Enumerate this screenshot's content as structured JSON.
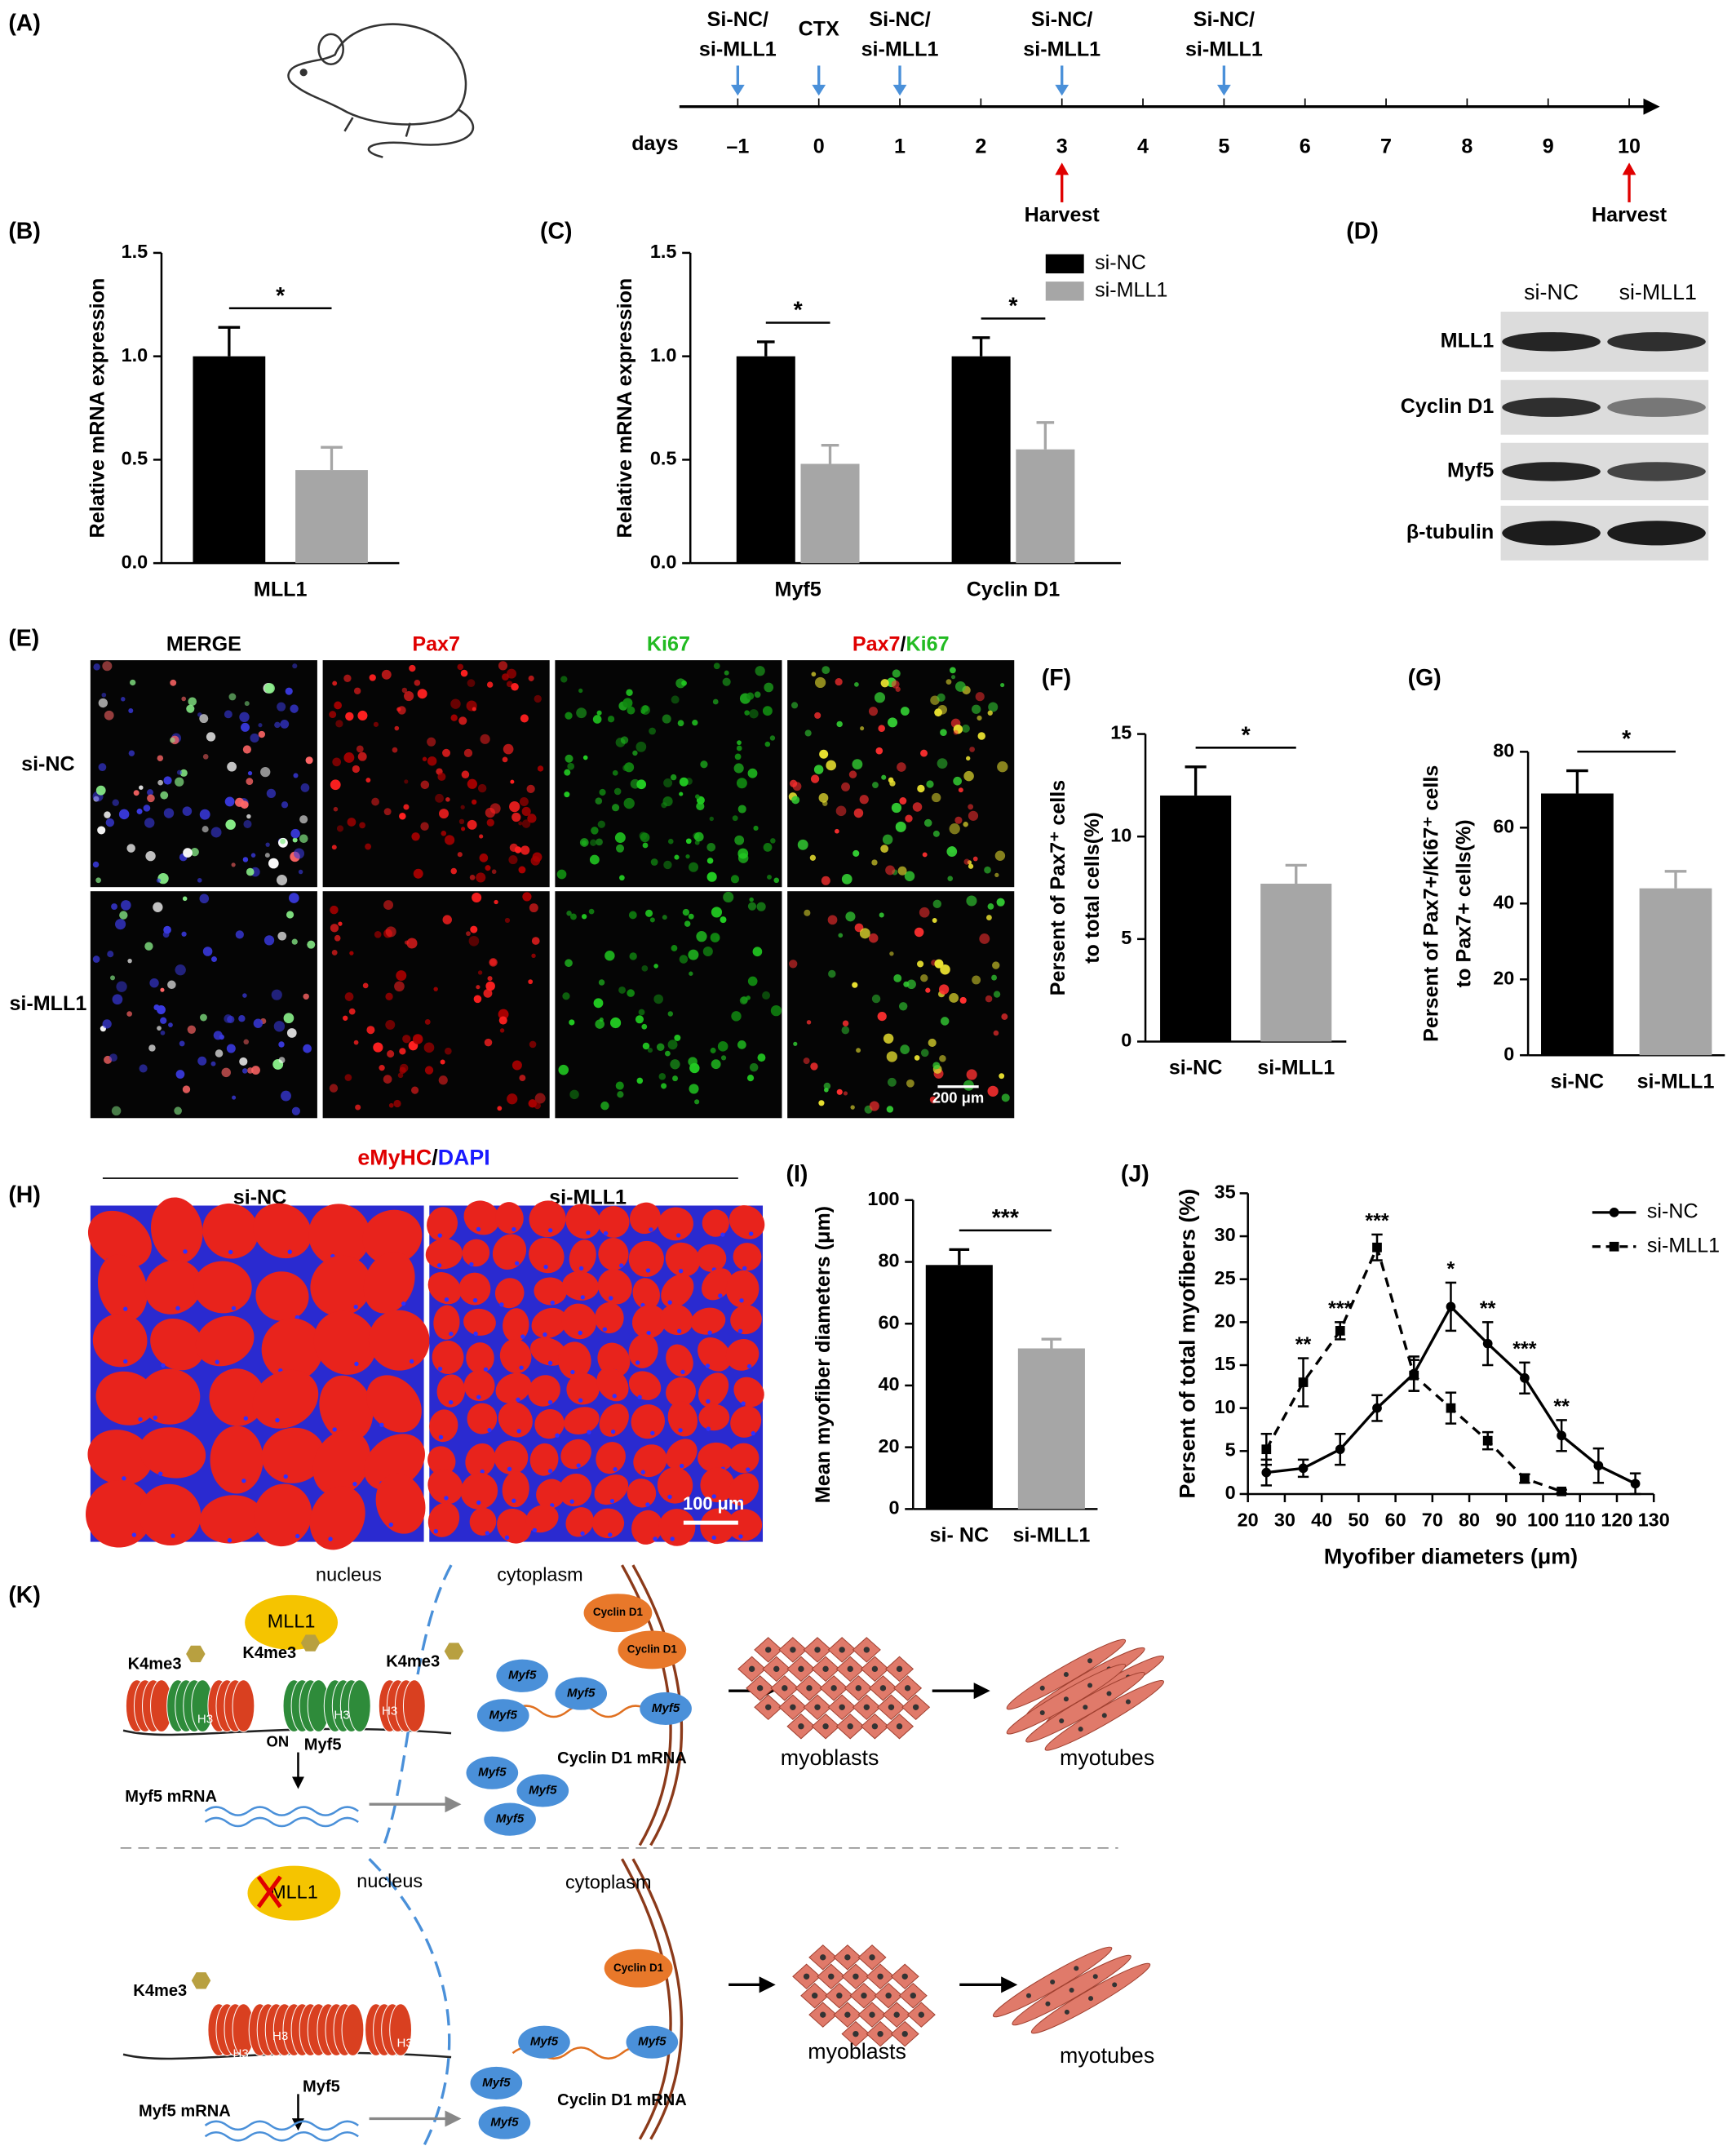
{
  "panel_labels": [
    "(A)",
    "(B)",
    "(C)",
    "(D)",
    "(E)",
    "(F)",
    "(G)",
    "(H)",
    "(I)",
    "(J)",
    "(K)"
  ],
  "timeline": {
    "axis_label": "days",
    "ticks": [
      {
        "value": -1,
        "label": "–1"
      },
      0,
      1,
      2,
      3,
      4,
      5,
      6,
      7,
      8,
      9,
      10
    ],
    "injections": [
      {
        "day": -1,
        "label": [
          "Si-NC/",
          "si-MLL1"
        ]
      },
      {
        "day": 0,
        "label": [
          "CTX"
        ]
      },
      {
        "day": 1,
        "label": [
          "Si-NC/",
          "si-MLL1"
        ]
      },
      {
        "day": 3,
        "label": [
          "Si-NC/",
          "si-MLL1"
        ]
      },
      {
        "day": 5,
        "label": [
          "Si-NC/",
          "si-MLL1"
        ]
      }
    ],
    "harvests": [
      {
        "day": 3,
        "label": "Harvest"
      },
      {
        "day": 10,
        "label": "Harvest"
      }
    ]
  },
  "chart_data": [
    {
      "type": "bar",
      "ylabel": [
        "Relative mRNA expression"
      ],
      "categories": [
        "MLL1"
      ],
      "series": [
        {
          "color": "#000000",
          "values": [
            1.0
          ],
          "errors": [
            0.14
          ]
        },
        {
          "color": "#a6a6a6",
          "values": [
            0.45
          ],
          "errors": [
            0.11
          ]
        }
      ],
      "ylim": [
        0,
        1.5
      ],
      "yticks": [
        {
          "value": 0,
          "label": "0.0"
        },
        {
          "value": 0.5,
          "label": "0.5"
        },
        {
          "value": 1,
          "label": "1.0"
        },
        {
          "value": 1.5,
          "label": "1.5"
        }
      ],
      "significance": [
        "*"
      ]
    },
    {
      "type": "bar",
      "ylabel": [
        "Relative mRNA expression"
      ],
      "categories": [
        "Myf5",
        "Cyclin D1"
      ],
      "series": [
        {
          "name": "si-NC",
          "color": "#000000",
          "values": [
            1.0,
            1.0
          ],
          "errors": [
            0.07,
            0.09
          ]
        },
        {
          "name": "si-MLL1",
          "color": "#a6a6a6",
          "values": [
            0.48,
            0.55
          ],
          "errors": [
            0.09,
            0.13
          ]
        }
      ],
      "ylim": [
        0,
        1.5
      ],
      "yticks": [
        {
          "value": 0,
          "label": "0.0"
        },
        {
          "value": 0.5,
          "label": "0.5"
        },
        {
          "value": 1,
          "label": "1.0"
        },
        {
          "value": 1.5,
          "label": "1.5"
        }
      ],
      "significance": [
        "*",
        "*"
      ],
      "legend": "upper right"
    },
    {
      "type": "bar",
      "ylabel": [
        "Persent of Pax7⁺ cells",
        "to total cells(%)"
      ],
      "categories": [
        "si-NC",
        "si-MLL1"
      ],
      "values": [
        12,
        7.7
      ],
      "errors": [
        1.4,
        0.9
      ],
      "colors": [
        "#000000",
        "#a6a6a6"
      ],
      "ylim": [
        0,
        15
      ],
      "yticks": [
        0,
        5,
        10,
        15
      ],
      "significance": [
        "*"
      ]
    },
    {
      "type": "bar",
      "ylabel": [
        "Persent of Pax7+/Ki67⁺ cells",
        "to Pax7+ cells(%)"
      ],
      "categories": [
        "si-NC",
        "si-MLL1"
      ],
      "values": [
        69,
        44
      ],
      "errors": [
        6,
        4.5
      ],
      "colors": [
        "#000000",
        "#a6a6a6"
      ],
      "ylim": [
        0,
        80
      ],
      "yticks": [
        0,
        20,
        40,
        60,
        80
      ],
      "significance": [
        "*"
      ]
    },
    {
      "type": "bar",
      "ylabel": [
        "Mean myofiber diameters (μm)"
      ],
      "categories": [
        "si- NC",
        "si-MLL1"
      ],
      "values": [
        79,
        52
      ],
      "errors": [
        5,
        3
      ],
      "colors": [
        "#000000",
        "#a6a6a6"
      ],
      "ylim": [
        0,
        100
      ],
      "yticks": [
        0,
        20,
        40,
        60,
        80,
        100
      ],
      "significance": [
        "***"
      ]
    },
    {
      "type": "line",
      "xlabel": "Myofiber diameters (μm)",
      "ylabel": "Persent of total myofibers (%)",
      "x": [
        25,
        35,
        45,
        55,
        65,
        75,
        85,
        95,
        105,
        115,
        125
      ],
      "series": [
        {
          "name": "si-NC",
          "color": "#000000",
          "dashed": false,
          "marker": "circle",
          "values": [
            2.5,
            3,
            5.2,
            10,
            14,
            21.8,
            17.5,
            13.5,
            6.8,
            3.3,
            1.2
          ],
          "errors": [
            1.5,
            1,
            1.8,
            1.5,
            2,
            2.8,
            2.5,
            1.8,
            1.8,
            2,
            1.2
          ]
        },
        {
          "name": "si-MLL1",
          "color": "#000000",
          "dashed": true,
          "marker": "square",
          "values": [
            5.2,
            13,
            19,
            28.7,
            13.8,
            10,
            6.2,
            1.8,
            0.3,
            null,
            null
          ],
          "errors": [
            1.8,
            2.8,
            1,
            1.5,
            1.8,
            1.8,
            1,
            0.5,
            0.2,
            null,
            null
          ]
        }
      ],
      "xlim": [
        20,
        130
      ],
      "xticks": [
        20,
        30,
        40,
        50,
        60,
        70,
        80,
        90,
        100,
        110,
        120,
        130
      ],
      "ylim": [
        0,
        35
      ],
      "yticks": [
        0,
        5,
        10,
        15,
        20,
        25,
        30,
        35
      ],
      "annotations": [
        {
          "index": 1,
          "text": "**"
        },
        {
          "index": 2,
          "text": "***"
        },
        {
          "index": 3,
          "text": "***"
        },
        {
          "index": 5,
          "text": "*"
        },
        {
          "index": 6,
          "text": "**"
        },
        {
          "index": 7,
          "text": "***"
        },
        {
          "index": 8,
          "text": "**"
        }
      ],
      "legend": "upper right"
    }
  ],
  "western_blot": {
    "columns": [
      "si-NC",
      "si-MLL1"
    ],
    "rows": [
      "MLL1",
      "Cyclin D1",
      "Myf5",
      "β-tubulin"
    ]
  },
  "immunofluorescence": {
    "columns": [
      [
        {
          "text": "MERGE",
          "color": "#000000"
        }
      ],
      [
        {
          "text": "Pax7",
          "color": "#e00000"
        }
      ],
      [
        {
          "text": "Ki67",
          "color": "#22bb22"
        }
      ],
      [
        {
          "text": "Pax7",
          "color": "#e00000"
        },
        {
          "text": "/",
          "color": "#000000"
        },
        {
          "text": "Ki67",
          "color": "#22bb22"
        }
      ]
    ],
    "rows": [
      "si-NC",
      "si-MLL1"
    ],
    "scale_bar": "200 μm"
  },
  "histology": {
    "title": [
      {
        "text": "eMyHC",
        "color": "#e00000"
      },
      {
        "text": "/",
        "color": "#000000"
      },
      {
        "text": "DAPI",
        "color": "#1a1aff"
      }
    ],
    "columns": [
      "si-NC",
      "si-MLL1"
    ],
    "scale_bar": "100 μm"
  },
  "pathway_diagram": {
    "active": {
      "nucleus": "nucleus",
      "mll1": "MLL1",
      "k4me3": [
        "K4me3",
        "K4me3",
        "K4me3"
      ],
      "h3": [
        "H3",
        "H3",
        "H3"
      ],
      "on": "ON",
      "gene": "Myf5",
      "mrna": "Myf5 mRNA",
      "cytoplasm": "cytoplasm",
      "cyclin": [
        "Cyclin D1",
        "Cyclin D1"
      ],
      "myf5_proteins": [
        "Myf5",
        "Myf5",
        "Myf5",
        "Myf5",
        "Myf5",
        "Myf5",
        "Myf5"
      ],
      "cyclin_mrna": "Cyclin D1 mRNA",
      "myoblasts": "myoblasts",
      "myotubes": "myotubes"
    },
    "knockdown": {
      "nucleus": "nucleus",
      "mll1": "MLL1",
      "k4me3": [
        "K4me3"
      ],
      "h3": [
        "H3",
        "H3",
        "H3"
      ],
      "gene": "Myf5",
      "mrna": "Myf5 mRNA",
      "cytoplasm": "cytoplasm",
      "cyclin": [
        "Cyclin D1"
      ],
      "myf5_proteins": [
        "Myf5",
        "Myf5",
        "Myf5",
        "Myf5"
      ],
      "cyclin_mrna": "Cyclin D1 mRNA",
      "myoblasts": "myoblasts",
      "myotubes": "myotubes"
    }
  }
}
